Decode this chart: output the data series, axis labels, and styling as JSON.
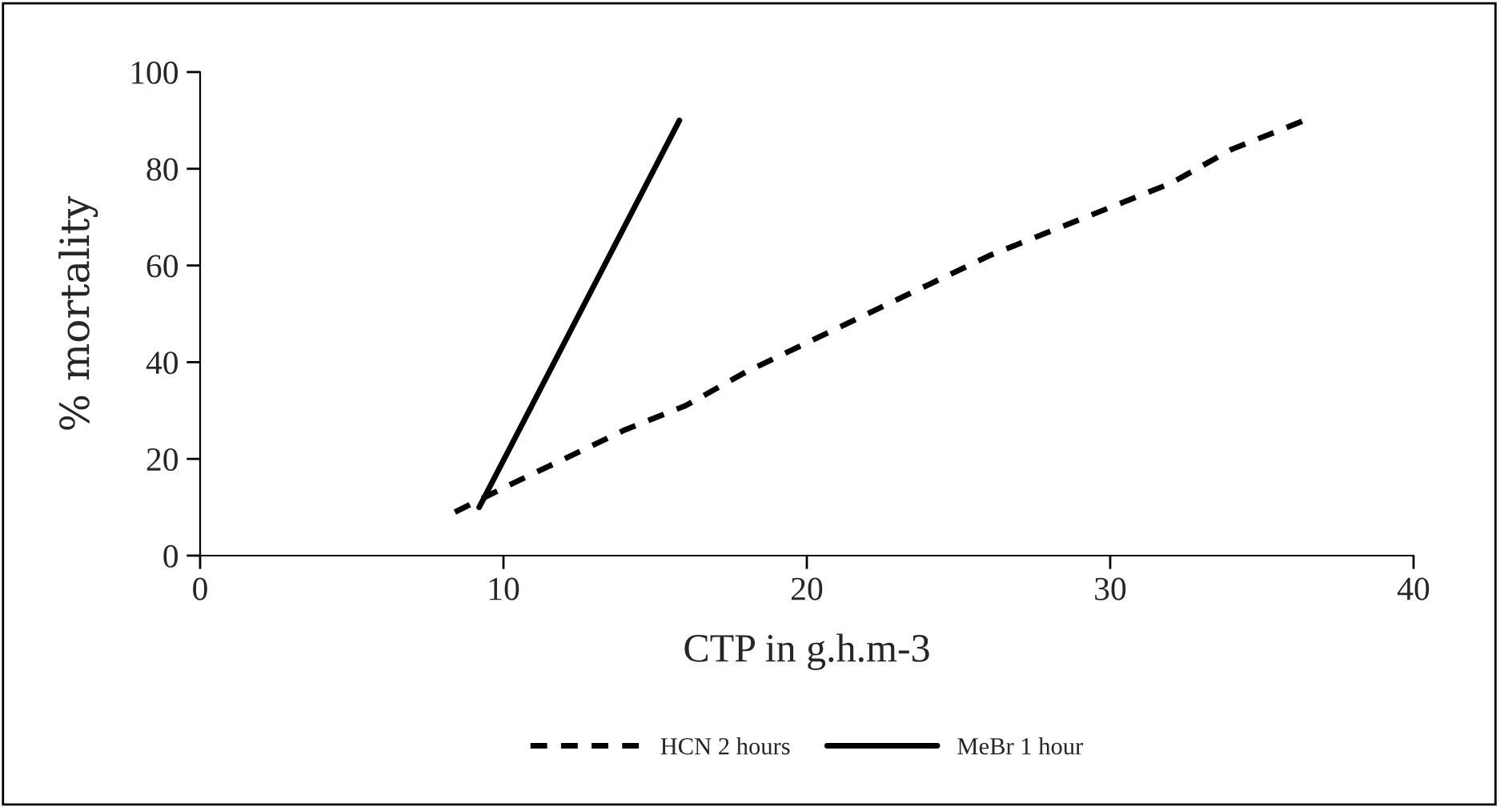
{
  "chart_data": {
    "type": "line",
    "xlabel": "CTP in g.h.m-3",
    "ylabel": "% mortality",
    "xlim": [
      0,
      40
    ],
    "xticks": [
      0,
      10,
      20,
      30,
      40
    ],
    "ylim": [
      0,
      100
    ],
    "yticks": [
      0,
      20,
      40,
      60,
      80,
      100
    ],
    "grid": false,
    "legend": "bottom",
    "marker": "none",
    "series": [
      {
        "name": "HCN 2 hours",
        "color": "#000000",
        "line_style": "dashed",
        "x": [
          8.4,
          10,
          12,
          14,
          16,
          18,
          20,
          22,
          24,
          26,
          28,
          30,
          32,
          34,
          36.4
        ],
        "values": [
          9,
          14,
          20,
          26,
          31,
          38,
          44,
          50,
          56,
          62,
          67,
          72,
          77,
          84,
          90
        ]
      },
      {
        "name": "MeBr 1 hour",
        "color": "#000000",
        "line_style": "solid",
        "x": [
          9.2,
          15.8
        ],
        "values": [
          10,
          90
        ]
      }
    ]
  }
}
